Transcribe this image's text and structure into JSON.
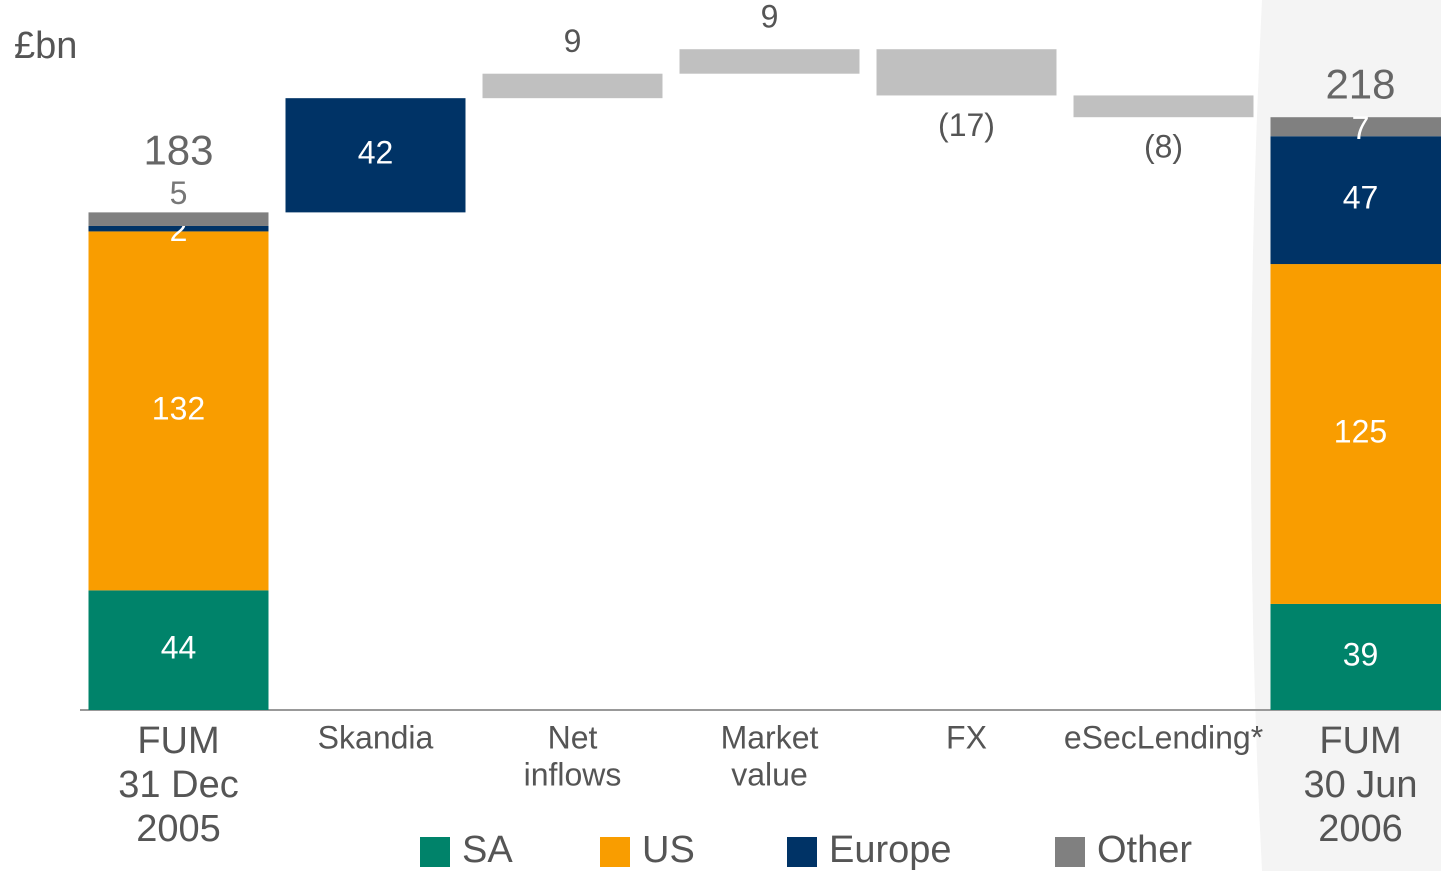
{
  "chart_data": {
    "type": "waterfall",
    "y_label": "£bn",
    "categories": [
      [
        "FUM",
        "31 Dec",
        "2005"
      ],
      [
        "Skandia"
      ],
      [
        "Net",
        "inflows"
      ],
      [
        "Market",
        "value"
      ],
      [
        "FX"
      ],
      [
        "eSecLending*"
      ],
      [
        "FUM",
        "30 Jun",
        "2006"
      ]
    ],
    "series": [
      {
        "name": "SA",
        "color": "#00836a",
        "values": [
          44,
          null,
          null,
          null,
          null,
          null,
          39
        ]
      },
      {
        "name": "US",
        "color": "#f99d00",
        "values": [
          132,
          null,
          null,
          null,
          null,
          null,
          125
        ]
      },
      {
        "name": "Europe",
        "color": "#003366",
        "values": [
          2,
          null,
          null,
          null,
          null,
          null,
          47
        ]
      },
      {
        "name": "Other",
        "color": "#808080",
        "values": [
          5,
          null,
          null,
          null,
          null,
          null,
          7
        ]
      }
    ],
    "totals": [
      183,
      null,
      null,
      null,
      null,
      null,
      218
    ],
    "changes": {
      "values": [
        null,
        42,
        9,
        9,
        -17,
        -8,
        null
      ],
      "value_labels": [
        null,
        "42",
        "9",
        "9",
        "(17)",
        "(8)",
        null
      ],
      "colors": [
        null,
        "#003366",
        "#c0c0c0",
        "#c0c0c0",
        "#c0c0c0",
        "#c0c0c0",
        null
      ]
    },
    "ylim": [
      0,
      260
    ]
  }
}
